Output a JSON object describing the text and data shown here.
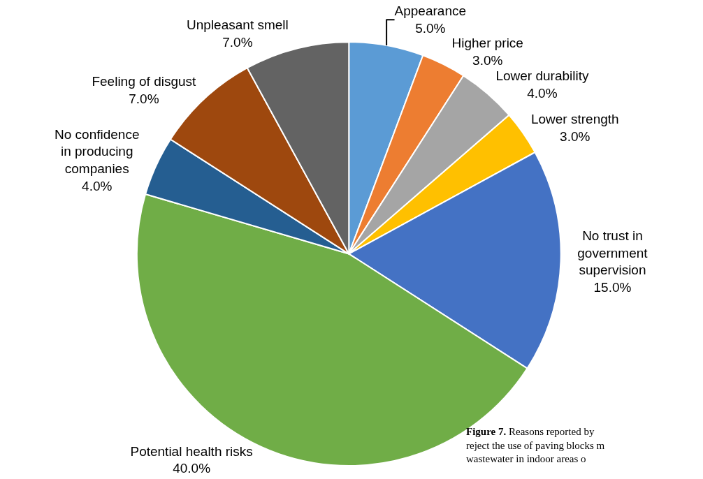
{
  "chart_data": {
    "type": "pie",
    "categories": [
      "Appearance",
      "Higher price",
      "Lower durability",
      "Lower strength",
      "No trust in government supervision",
      "Potential health risks",
      "No confidence in producing companies",
      "Feeling of disgust",
      "Unpleasant smell"
    ],
    "values": [
      5,
      3,
      4,
      3,
      15,
      40,
      4,
      7,
      7
    ],
    "value_labels": [
      "5.0%",
      "3.0%",
      "4.0%",
      "3.0%",
      "15.0%",
      "40.0%",
      "4.0%",
      "7.0%",
      "7.0%"
    ],
    "colors": [
      "#5b9bd5",
      "#ed7d31",
      "#a5a5a5",
      "#ffc000",
      "#4472c4",
      "#70ad47",
      "#255e91",
      "#9e480e",
      "#636363"
    ],
    "legend": false,
    "annotations": [
      "Figure 7. Reasons reported by\nreject the use of paving blocks m\nwastewater in indoor areas o"
    ]
  }
}
